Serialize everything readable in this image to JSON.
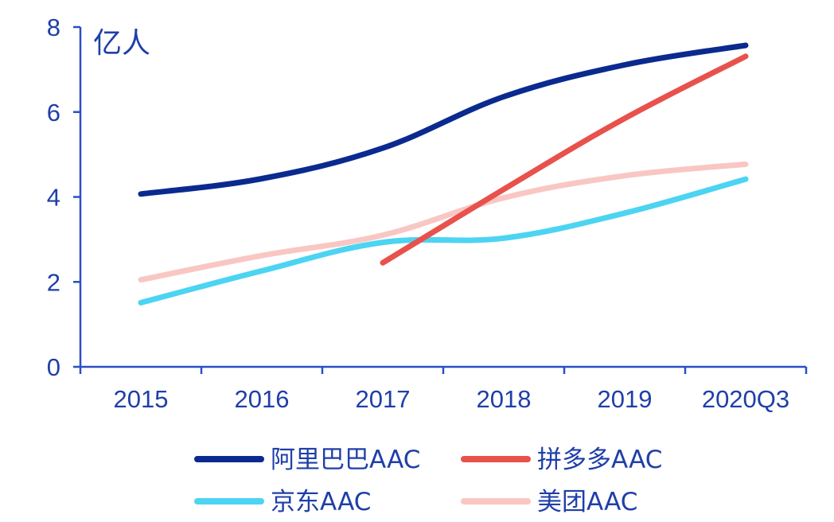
{
  "chart_data": {
    "type": "line",
    "ylabel": "亿人",
    "ylim": [
      0,
      8
    ],
    "yticks": [
      0,
      2,
      4,
      6,
      8
    ],
    "categories": [
      "2015",
      "2016",
      "2017",
      "2018",
      "2019",
      "2020Q3"
    ],
    "grid": false,
    "legend_position": "bottom",
    "axis_color": "#2b4fc4",
    "series": [
      {
        "name": "阿里巴巴AAC",
        "color": "#0b2a8f",
        "values": [
          4.07,
          4.43,
          5.15,
          6.36,
          7.11,
          7.57
        ]
      },
      {
        "name": "拼多多AAC",
        "color": "#e8514c",
        "values": [
          null,
          null,
          2.45,
          4.18,
          5.85,
          7.31
        ]
      },
      {
        "name": "京东AAC",
        "color": "#4cd4f2",
        "values": [
          1.51,
          2.26,
          2.93,
          3.03,
          3.62,
          4.42
        ]
      },
      {
        "name": "美团AAC",
        "color": "#f9c7c3",
        "values": [
          2.05,
          2.62,
          3.1,
          3.98,
          4.5,
          4.77
        ]
      }
    ]
  }
}
